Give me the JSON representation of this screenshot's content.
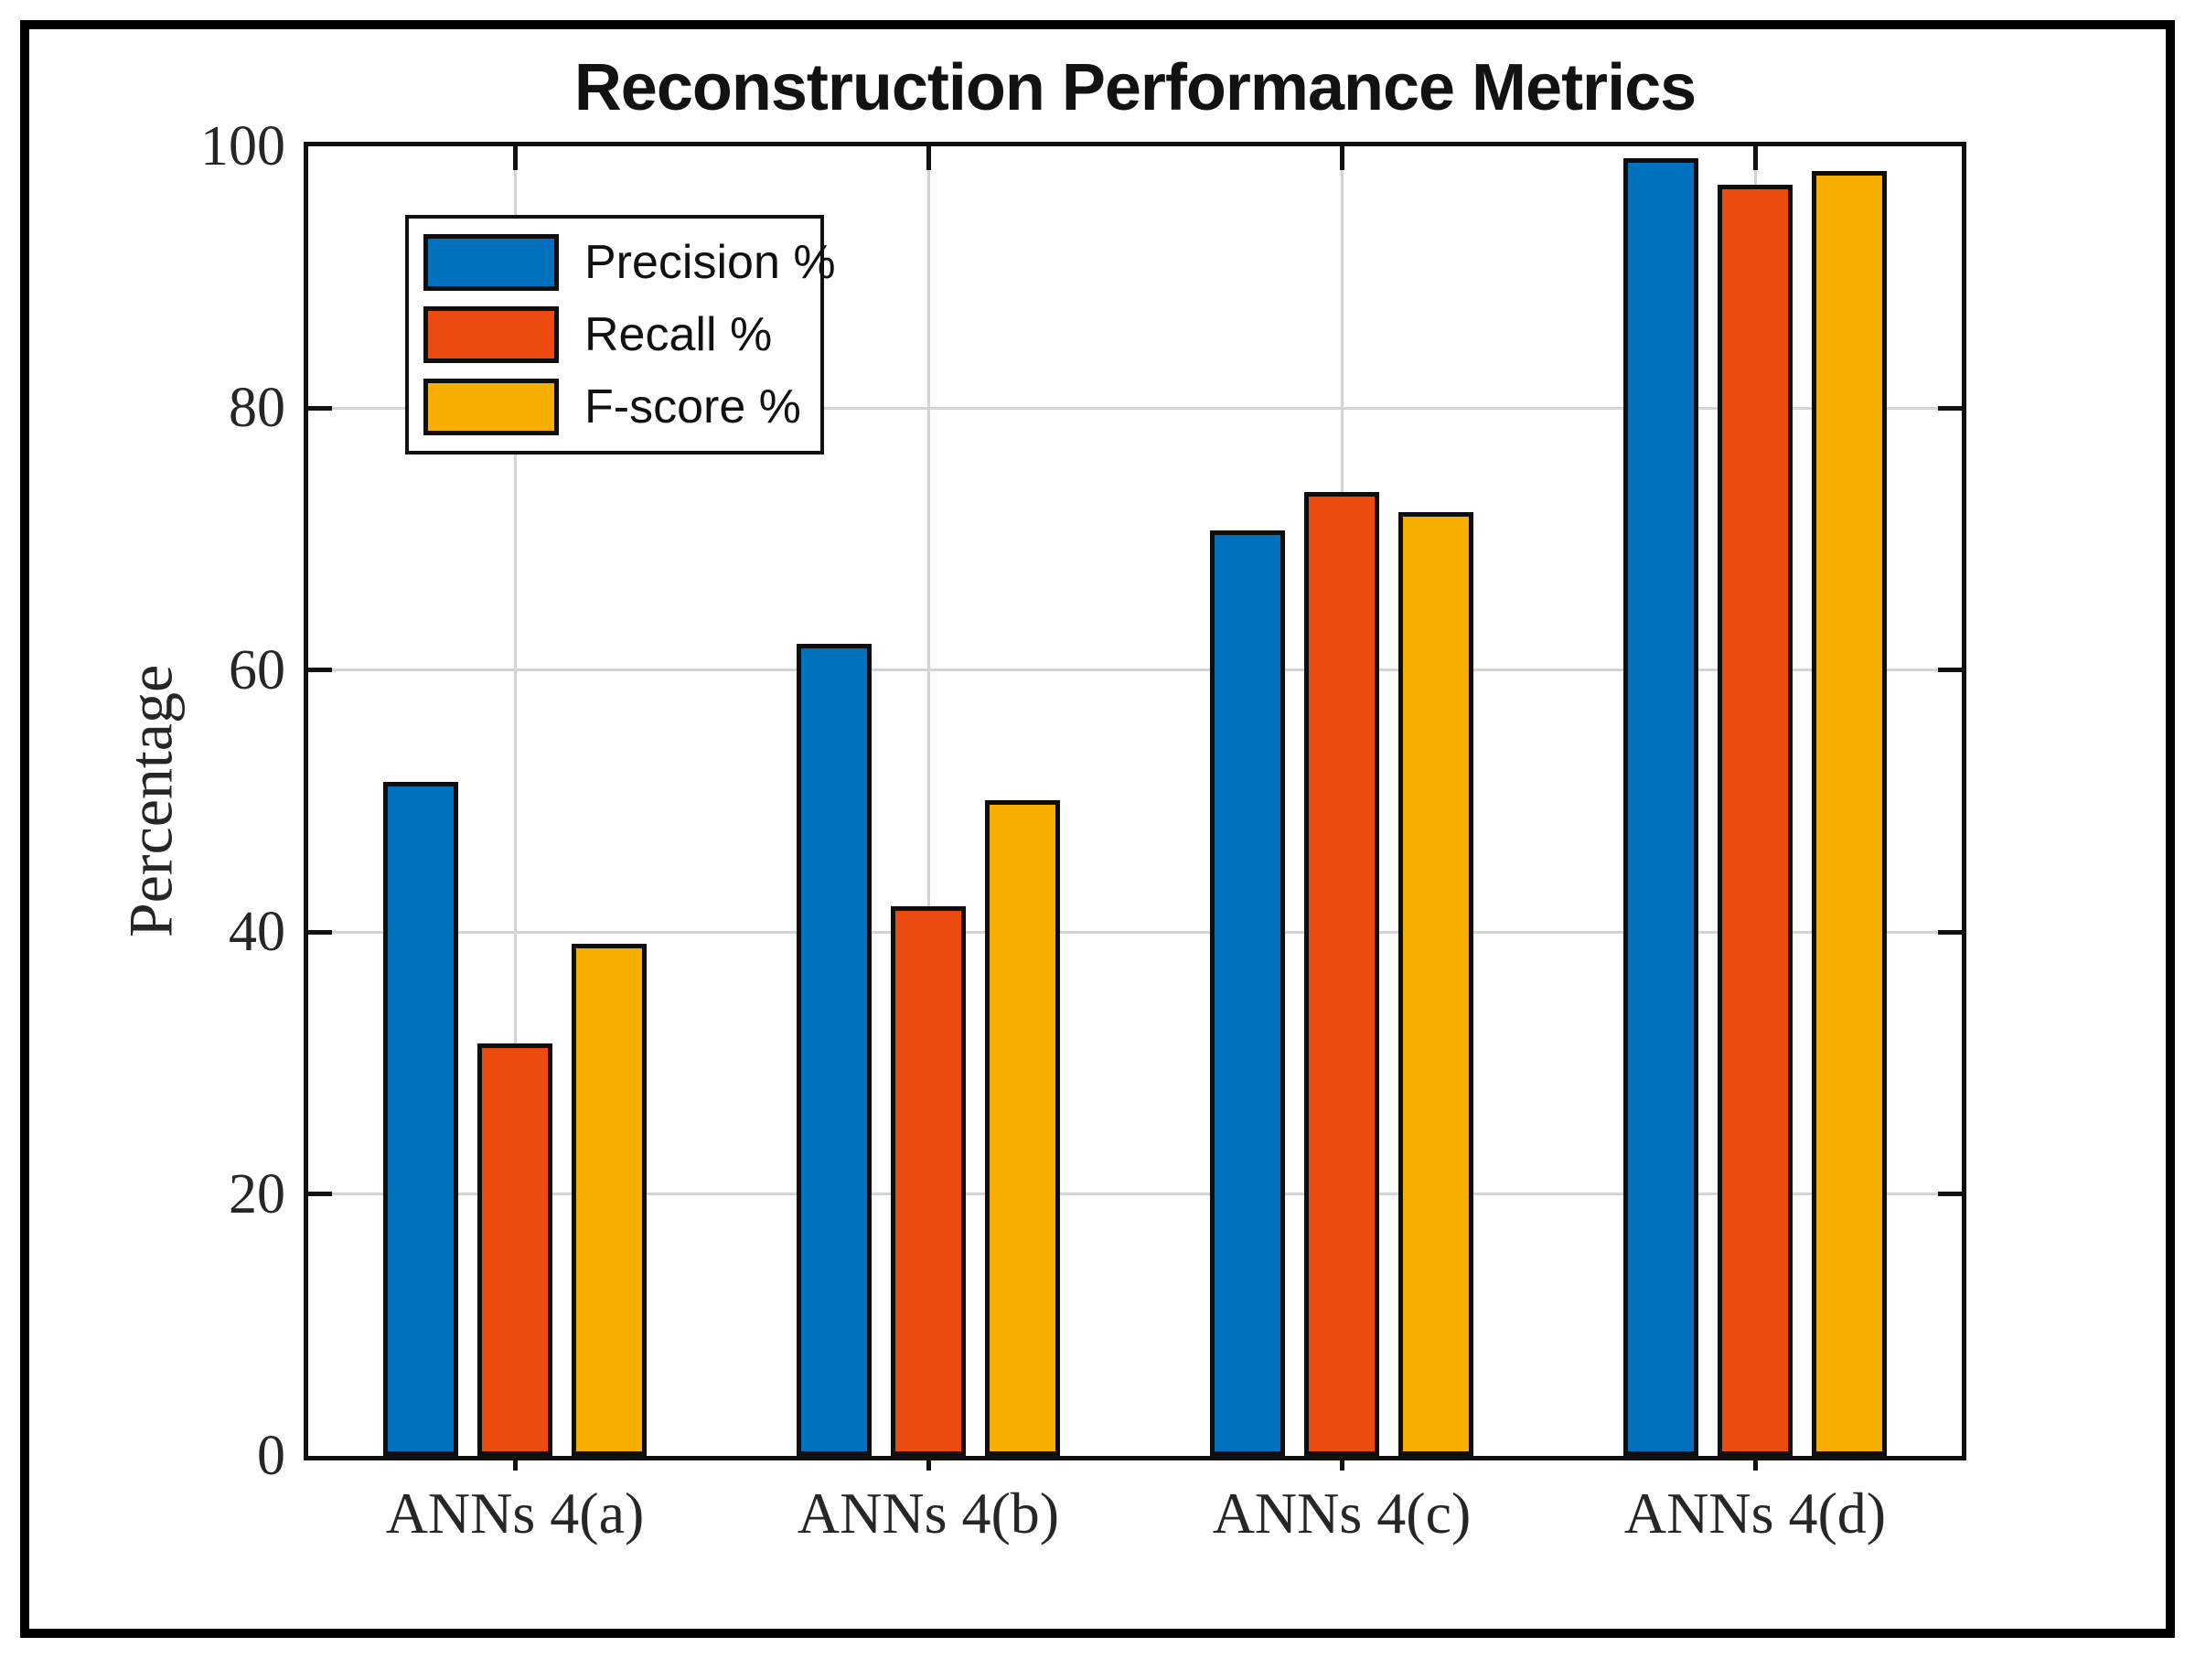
{
  "figure": {
    "background": "#ffffff",
    "border_color": "#000000",
    "grid_color": "#d4d4d4",
    "axis_color": "#111111",
    "text_color": "#262626"
  },
  "chart_data": {
    "type": "bar",
    "title": "Reconstruction Performance Metrics",
    "xlabel": "",
    "ylabel": "Percentage",
    "categories": [
      "ANNs 4(a)",
      "ANNs 4(b)",
      "ANNs 4(c)",
      "ANNs 4(d)"
    ],
    "series": [
      {
        "name": "Precision %",
        "color": "#0072BD",
        "values": [
          51.5,
          62.0,
          70.7,
          99.1
        ]
      },
      {
        "name": "Recall %",
        "color": "#EC4B0F",
        "values": [
          31.5,
          42.0,
          73.6,
          97.1
        ]
      },
      {
        "name": "F-score %",
        "color": "#F8AE00",
        "values": [
          39.1,
          50.1,
          72.1,
          98.1
        ]
      }
    ],
    "ylim": [
      0,
      100
    ],
    "yticks": [
      0,
      20,
      40,
      60,
      80,
      100
    ],
    "grid": true,
    "legend_position": "top-left"
  }
}
